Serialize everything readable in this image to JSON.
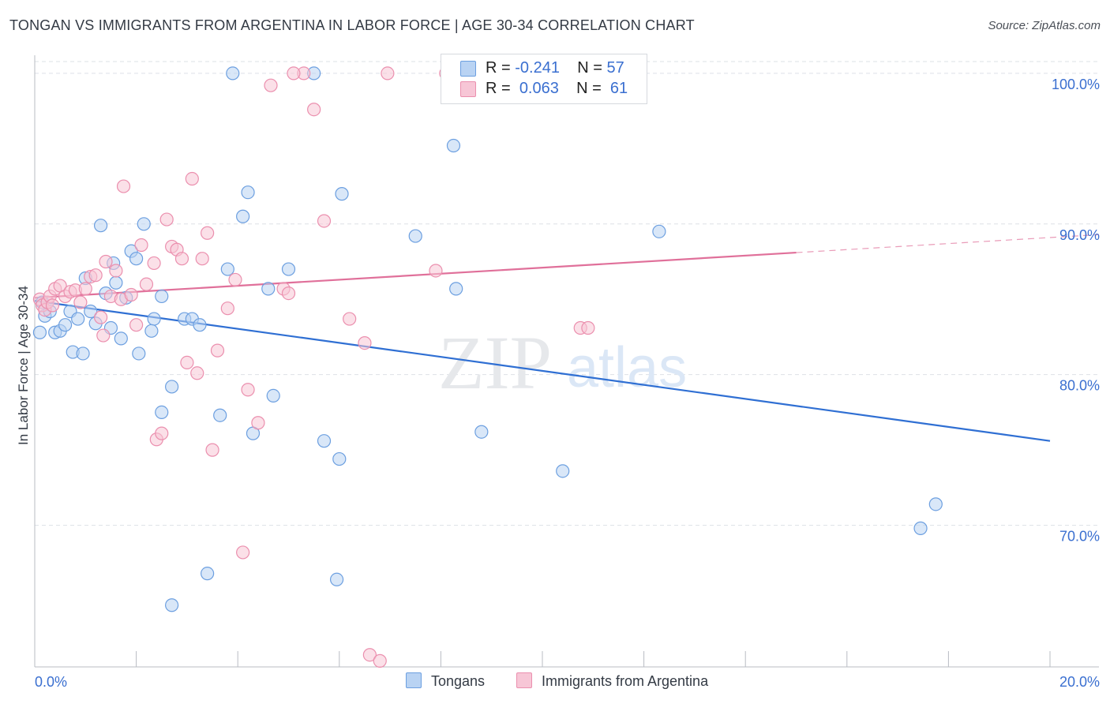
{
  "header": {
    "title": "TONGAN VS IMMIGRANTS FROM ARGENTINA IN LABOR FORCE | AGE 30-34 CORRELATION CHART",
    "source": "Source: ZipAtlas.com"
  },
  "watermark": {
    "zip": "ZIP",
    "atlas": "atlas"
  },
  "legend": {
    "rows": [
      {
        "r_label": "R = ",
        "r_value": "-0.241",
        "n_label": "N = ",
        "n_value": "57"
      },
      {
        "r_label": "R = ",
        "r_value": "0.063",
        "n_label": "N = ",
        "n_value": "61"
      }
    ]
  },
  "bottom_legend": {
    "tongans": "Tongans",
    "argentina": "Immigrants from Argentina"
  },
  "colors": {
    "blue_fill": "#b9d3f3",
    "blue_stroke": "#6c9fe0",
    "blue_line": "#2f6fd3",
    "pink_fill": "#f7c6d6",
    "pink_stroke": "#eb8fae",
    "pink_line": "#e0709a",
    "axis_label": "#3a6fd0",
    "grid": "#dde1e6"
  },
  "chart_data": {
    "type": "scatter",
    "title": "TONGAN VS IMMIGRANTS FROM ARGENTINA IN LABOR FORCE | AGE 30-34 CORRELATION CHART",
    "xlabel": "",
    "ylabel": "In Labor Force | Age 30-34",
    "xlim": [
      0,
      20
    ],
    "ylim": [
      60.6,
      101.2
    ],
    "x_tick_labels": [
      "0.0%",
      "20.0%"
    ],
    "y_ticks": [
      70,
      80,
      90,
      100
    ],
    "y_tick_labels": [
      "70.0%",
      "80.0%",
      "90.0%",
      "100.0%"
    ],
    "grid": true,
    "legend_position": "top-center",
    "series": [
      {
        "name": "Tongans",
        "r": -0.241,
        "n": 57,
        "trend": {
          "x": [
            0,
            20
          ],
          "y": [
            84.9,
            75.6
          ],
          "dashed_from": null
        },
        "points": [
          [
            0.1,
            82.8
          ],
          [
            0.2,
            83.9
          ],
          [
            0.3,
            84.2
          ],
          [
            0.4,
            82.8
          ],
          [
            0.5,
            82.9
          ],
          [
            0.6,
            83.3
          ],
          [
            0.7,
            84.2
          ],
          [
            0.75,
            81.5
          ],
          [
            0.85,
            83.7
          ],
          [
            0.95,
            81.4
          ],
          [
            1.0,
            86.4
          ],
          [
            1.1,
            84.2
          ],
          [
            1.2,
            83.4
          ],
          [
            1.3,
            89.9
          ],
          [
            1.4,
            85.4
          ],
          [
            1.5,
            83.1
          ],
          [
            1.55,
            87.4
          ],
          [
            1.6,
            86.1
          ],
          [
            1.7,
            82.4
          ],
          [
            1.8,
            85.1
          ],
          [
            1.9,
            88.2
          ],
          [
            2.0,
            87.7
          ],
          [
            2.05,
            81.4
          ],
          [
            2.15,
            90.0
          ],
          [
            2.35,
            83.7
          ],
          [
            2.3,
            82.9
          ],
          [
            2.5,
            85.2
          ],
          [
            2.5,
            77.5
          ],
          [
            2.7,
            79.2
          ],
          [
            2.95,
            83.7
          ],
          [
            3.1,
            83.7
          ],
          [
            3.25,
            83.3
          ],
          [
            3.4,
            66.8
          ],
          [
            3.65,
            77.3
          ],
          [
            3.8,
            87.0
          ],
          [
            3.9,
            100.0
          ],
          [
            4.1,
            90.5
          ],
          [
            4.2,
            92.1
          ],
          [
            4.3,
            76.1
          ],
          [
            4.6,
            85.7
          ],
          [
            4.7,
            78.6
          ],
          [
            5.0,
            87.0
          ],
          [
            5.5,
            100.0
          ],
          [
            5.7,
            75.6
          ],
          [
            5.95,
            66.4
          ],
          [
            6.0,
            74.4
          ],
          [
            6.05,
            92.0
          ],
          [
            7.5,
            89.2
          ],
          [
            8.25,
            95.2
          ],
          [
            8.3,
            85.7
          ],
          [
            8.8,
            76.2
          ],
          [
            10.4,
            73.6
          ],
          [
            12.3,
            89.5
          ],
          [
            17.45,
            69.8
          ],
          [
            17.75,
            71.4
          ],
          [
            2.7,
            64.7
          ],
          [
            0.15,
            84.8
          ]
        ]
      },
      {
        "name": "Immigrants from Argentina",
        "r": 0.063,
        "n": 61,
        "trend": {
          "x": [
            0,
            20
          ],
          "y": [
            85.1,
            89.1
          ],
          "dashed_from": 15
        },
        "points": [
          [
            0.1,
            85.0
          ],
          [
            0.15,
            84.6
          ],
          [
            0.2,
            84.3
          ],
          [
            0.25,
            84.8
          ],
          [
            0.3,
            85.2
          ],
          [
            0.4,
            85.7
          ],
          [
            0.5,
            85.9
          ],
          [
            0.6,
            85.2
          ],
          [
            0.7,
            85.5
          ],
          [
            0.8,
            85.6
          ],
          [
            0.9,
            84.8
          ],
          [
            1.0,
            85.7
          ],
          [
            1.1,
            86.5
          ],
          [
            1.2,
            86.6
          ],
          [
            1.3,
            83.8
          ],
          [
            1.35,
            82.6
          ],
          [
            1.4,
            87.5
          ],
          [
            1.5,
            85.2
          ],
          [
            1.6,
            86.9
          ],
          [
            1.7,
            85.0
          ],
          [
            1.75,
            92.5
          ],
          [
            1.9,
            85.3
          ],
          [
            2.0,
            83.3
          ],
          [
            2.1,
            88.6
          ],
          [
            2.2,
            86.0
          ],
          [
            2.35,
            87.4
          ],
          [
            2.4,
            75.7
          ],
          [
            2.5,
            76.1
          ],
          [
            2.6,
            90.3
          ],
          [
            2.7,
            88.5
          ],
          [
            2.8,
            88.3
          ],
          [
            2.9,
            87.7
          ],
          [
            3.0,
            80.8
          ],
          [
            3.1,
            93.0
          ],
          [
            3.2,
            80.1
          ],
          [
            3.3,
            87.7
          ],
          [
            3.4,
            89.4
          ],
          [
            3.5,
            75.0
          ],
          [
            3.6,
            81.6
          ],
          [
            3.8,
            84.4
          ],
          [
            3.95,
            86.3
          ],
          [
            4.1,
            68.2
          ],
          [
            4.2,
            79.0
          ],
          [
            4.4,
            76.8
          ],
          [
            4.65,
            99.2
          ],
          [
            4.9,
            85.7
          ],
          [
            5.0,
            85.4
          ],
          [
            5.3,
            100.0
          ],
          [
            5.5,
            97.6
          ],
          [
            5.7,
            90.2
          ],
          [
            6.2,
            83.7
          ],
          [
            6.5,
            82.1
          ],
          [
            6.6,
            61.4
          ],
          [
            6.8,
            61.0
          ],
          [
            6.95,
            100.0
          ],
          [
            7.9,
            86.9
          ],
          [
            8.1,
            100.0
          ],
          [
            10.75,
            83.1
          ],
          [
            10.9,
            83.1
          ],
          [
            5.1,
            100.0
          ],
          [
            0.35,
            84.6
          ]
        ]
      }
    ]
  }
}
